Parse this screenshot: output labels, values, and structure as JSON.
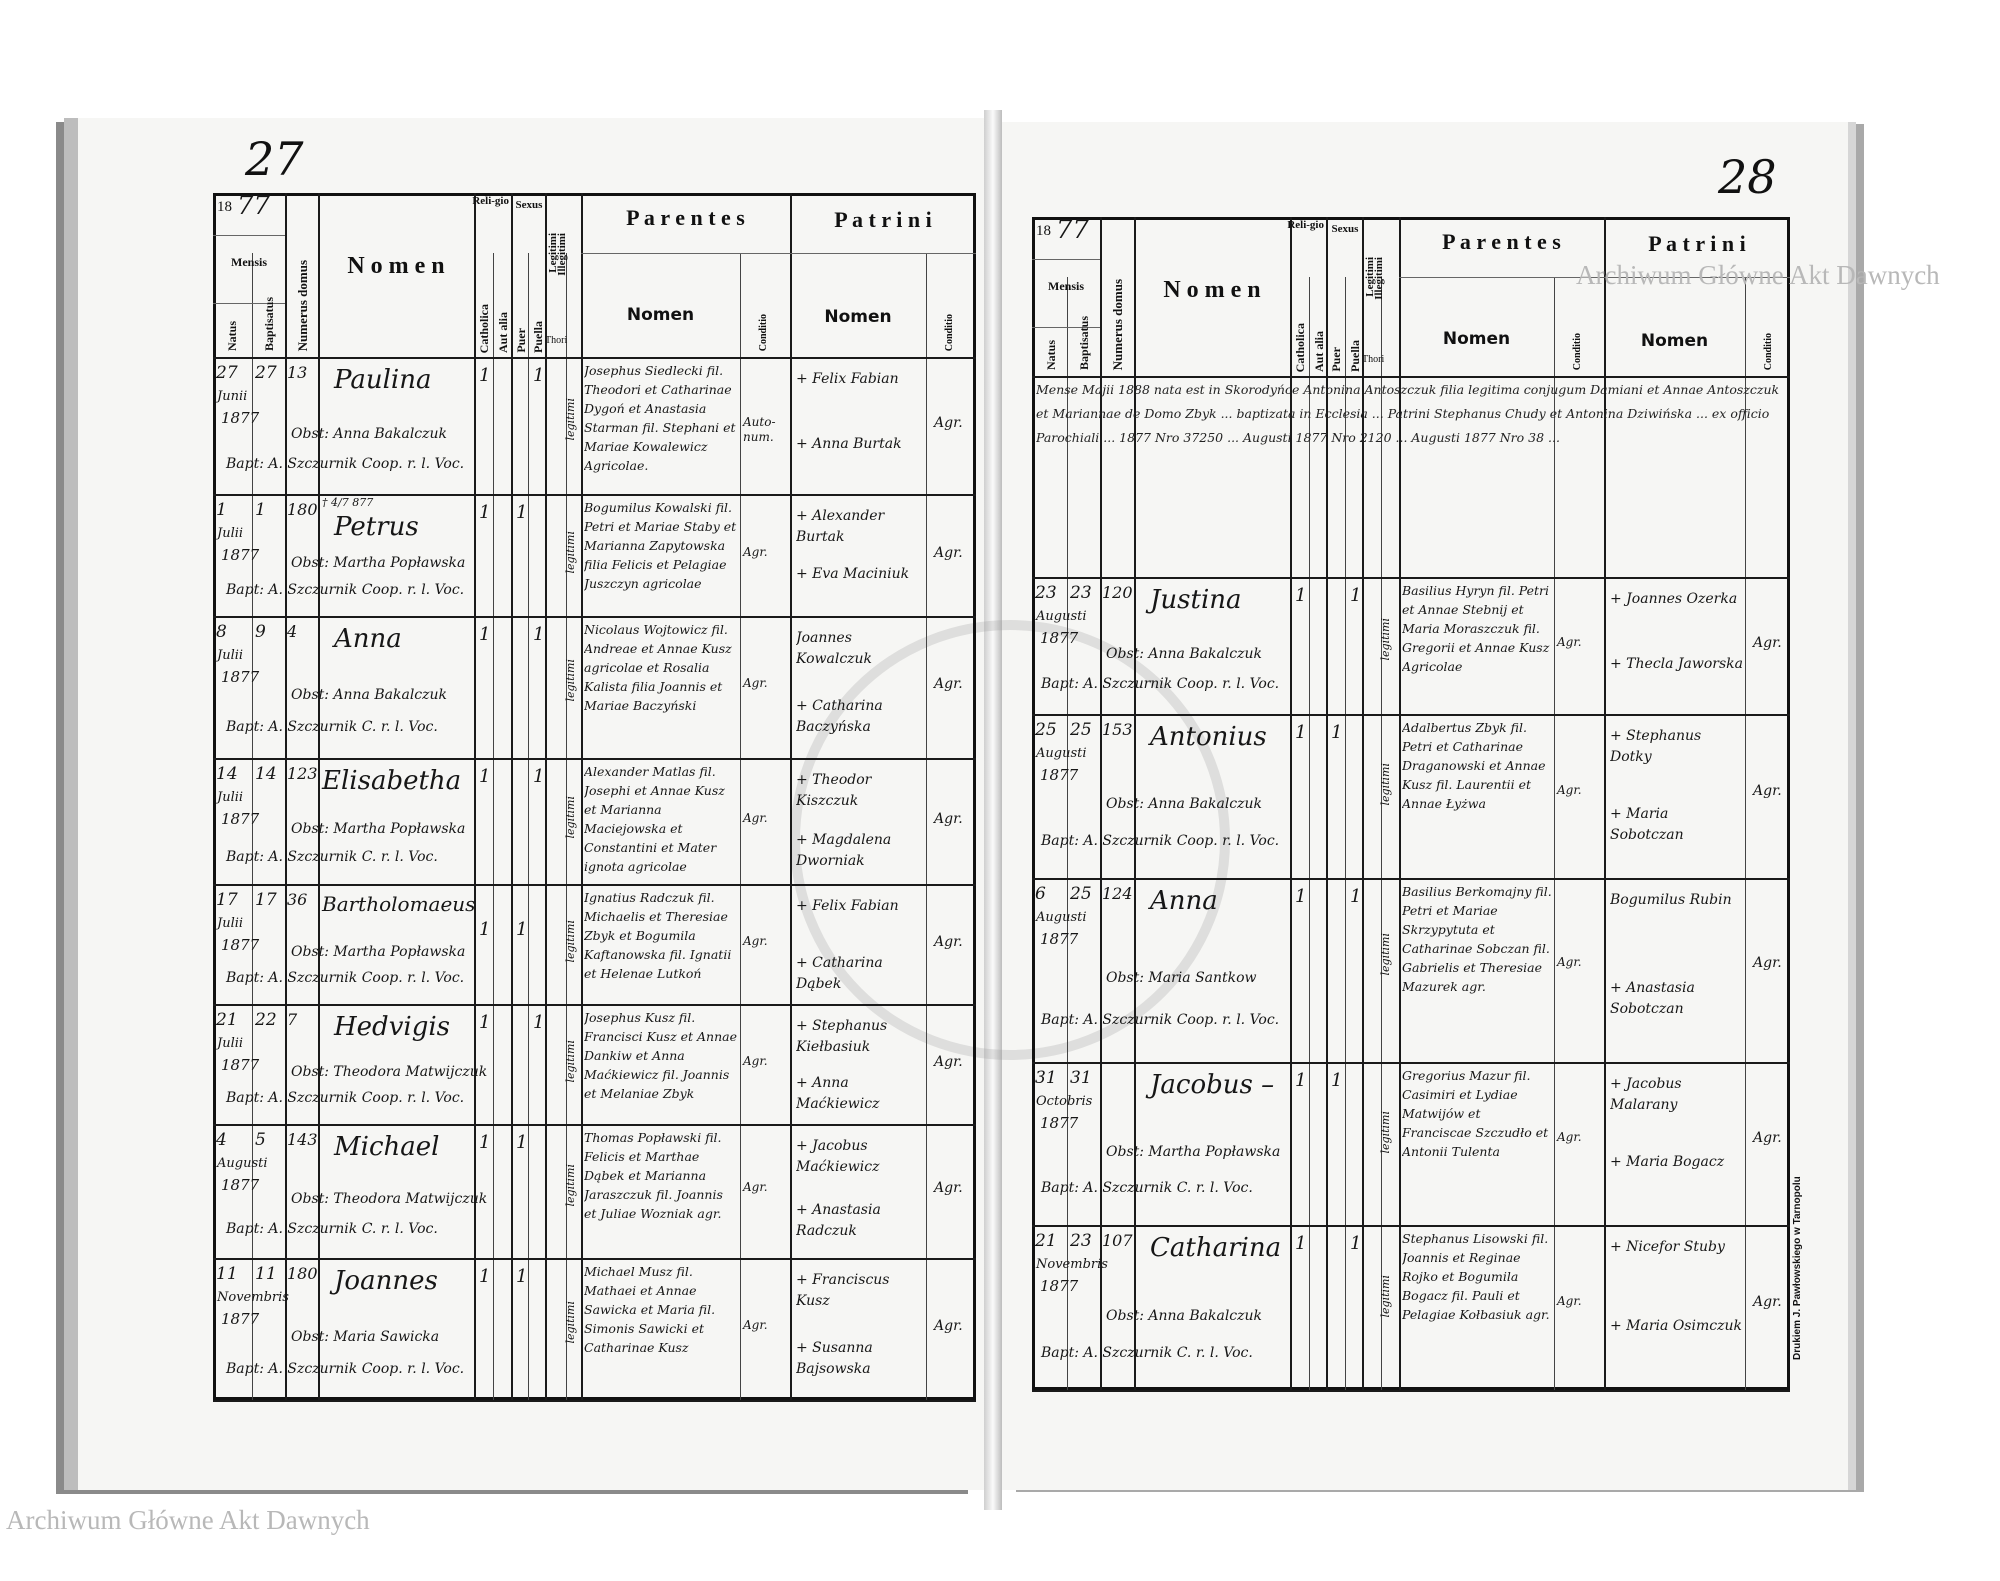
{
  "pages": {
    "left_number": "27",
    "right_number": "28"
  },
  "header": {
    "year_prefix": "18",
    "year_suffix": "77",
    "mensis": "Mensis",
    "natus": "Natus",
    "baptisatus": "Baptisatus",
    "numerus_domus": "Numerus domus",
    "nomen": "N o m e n",
    "religio": "Reli-gio",
    "catholica": "Catholica",
    "aut_alia": "Aut alia",
    "sexus": "Sexus",
    "puer": "Puer",
    "puella": "Puella",
    "legitimi": "Legitimi",
    "illegitimi": "Illegitimi",
    "thori": "Thori",
    "parentes": "P a r e n t e s",
    "patrini": "P a t r i n i",
    "sub_nomen": "Nomen",
    "conditio": "Conditio"
  },
  "left_entries": [
    {
      "natus": "27",
      "baptisatus": "27",
      "mensis": "Junii",
      "year": "1877",
      "numerus": "13",
      "nomen": "Paulina",
      "note": "",
      "obst": "Obst: Anna Bakalczuk",
      "bapt": "Bapt: A. Szczurnik Coop. r. l. Voc.",
      "religio": "1",
      "sexus": "1",
      "sex_col": "puella",
      "thori": "legitimi",
      "parentes": "Josephus Siedlecki fil. Theodori et Catharinae Dygoń et Anastasia Starman fil. Stephani et Mariae Kowalewicz Agricolae.",
      "parentes_conditio": "Auto-num.",
      "patrini": [
        "+ Felix Fabian",
        "+ Anna Burtak"
      ],
      "patrini_conditio": "Agr."
    },
    {
      "natus": "1",
      "baptisatus": "1",
      "mensis": "Julii",
      "year": "1877",
      "numerus": "180",
      "nomen": "Petrus",
      "note": "† 4/7 877",
      "obst": "Obst: Martha Popławska",
      "bapt": "Bapt: A. Szczurnik Coop. r. l. Voc.",
      "religio": "1",
      "sexus": "1",
      "sex_col": "puer",
      "thori": "legitimi",
      "parentes": "Bogumilus Kowalski fil. Petri et Mariae Staby et Marianna Zapytowska filia Felicis et Pelagiae Juszczyn agricolae",
      "parentes_conditio": "Agr.",
      "patrini": [
        "+ Alexander Burtak",
        "+ Eva Maciniuk"
      ],
      "patrini_conditio": "Agr."
    },
    {
      "natus": "8",
      "baptisatus": "9",
      "mensis": "Julii",
      "year": "1877",
      "numerus": "4",
      "nomen": "Anna",
      "note": "",
      "obst": "Obst: Anna Bakalczuk",
      "bapt": "Bapt: A. Szczurnik C. r. l. Voc.",
      "religio": "1",
      "sexus": "1",
      "sex_col": "puella",
      "thori": "legitimi",
      "parentes": "Nicolaus Wojtowicz fil. Andreae et Annae Kusz agricolae et Rosalia Kalista filia Joannis et Mariae Baczyński",
      "parentes_conditio": "Agr.",
      "patrini": [
        "Joannes Kowalczuk",
        "+ Catharina Baczyńska"
      ],
      "patrini_conditio": "Agr."
    },
    {
      "natus": "14",
      "baptisatus": "14",
      "mensis": "Julii",
      "year": "1877",
      "numerus": "123",
      "nomen": "Elisabetha",
      "note": "",
      "obst": "Obst: Martha Popławska",
      "bapt": "Bapt: A. Szczurnik C. r. l. Voc.",
      "religio": "1",
      "sexus": "1",
      "sex_col": "puella",
      "thori": "legitimi",
      "parentes": "Alexander Matlas fil. Josephi et Annae Kusz et Marianna Maciejowska et Constantini et Mater ignota agricolae",
      "parentes_conditio": "Agr.",
      "patrini": [
        "+ Theodor Kiszczuk",
        "+ Magdalena Dworniak"
      ],
      "patrini_conditio": "Agr."
    },
    {
      "natus": "17",
      "baptisatus": "17",
      "mensis": "Julii",
      "year": "1877",
      "numerus": "36",
      "nomen": "Bartholomaeus",
      "note": "",
      "obst": "Obst: Martha Popławska",
      "bapt": "Bapt: A. Szczurnik Coop. r. l. Voc.",
      "religio": "1",
      "sexus": "1",
      "sex_col": "puer",
      "thori": "legitimi",
      "parentes": "Ignatius Radczuk fil. Michaelis et Theresiae Zbyk et Bogumila Kaftanowska fil. Ignatii et Helenae Lutkoń",
      "parentes_conditio": "Agr.",
      "patrini": [
        "+ Felix Fabian",
        "+ Catharina Dąbek"
      ],
      "patrini_conditio": "Agr."
    },
    {
      "natus": "21",
      "baptisatus": "22",
      "mensis": "Julii",
      "year": "1877",
      "numerus": "7",
      "nomen": "Hedvigis",
      "note": "",
      "obst": "Obst: Theodora Matwijczuk",
      "bapt": "Bapt: A. Szczurnik Coop. r. l. Voc.",
      "religio": "1",
      "sexus": "1",
      "sex_col": "puella",
      "thori": "legitimi",
      "parentes": "Josephus Kusz fil. Francisci Kusz et Annae Dankiw et Anna Maćkiewicz fil. Joannis et Melaniae Zbyk",
      "parentes_conditio": "Agr.",
      "patrini": [
        "+ Stephanus Kiełbasiuk",
        "+ Anna Maćkiewicz"
      ],
      "patrini_conditio": "Agr."
    },
    {
      "natus": "4",
      "baptisatus": "5",
      "mensis": "Augusti",
      "year": "1877",
      "numerus": "143",
      "nomen": "Michael",
      "note": "",
      "obst": "Obst: Theodora Matwijczuk",
      "bapt": "Bapt: A. Szczurnik C. r. l. Voc.",
      "religio": "1",
      "sexus": "1",
      "sex_col": "puer",
      "thori": "legitimi",
      "parentes": "Thomas Popławski fil. Felicis et Marthae Dąbek et Marianna Jaraszczuk fil. Joannis et Juliae Wozniak agr.",
      "parentes_conditio": "Agr.",
      "patrini": [
        "+ Jacobus Maćkiewicz",
        "+ Anastasia Radczuk"
      ],
      "patrini_conditio": "Agr."
    },
    {
      "natus": "11",
      "baptisatus": "11",
      "mensis": "Novembris",
      "year": "1877",
      "numerus": "180",
      "nomen": "Joannes",
      "note": "",
      "obst": "Obst: Maria Sawicka",
      "bapt": "Bapt: A. Szczurnik Coop. r. l. Voc.",
      "religio": "1",
      "sexus": "1",
      "sex_col": "puer",
      "thori": "legitimi",
      "parentes": "Michael Musz fil. Mathaei et Annae Sawicka et Maria fil. Simonis Sawicki et Catharinae Kusz",
      "parentes_conditio": "Agr.",
      "patrini": [
        "+ Franciscus Kusz",
        "+ Susanna Bajsowska"
      ],
      "patrini_conditio": "Agr."
    }
  ],
  "right_note": "Mense Majii 1888 nata est in Skorodyńce Antonina Antoszczuk filia legitima conjugum Damiani et Annae Antoszczuk et Mariannae de Domo Zbyk ... baptizata in Ecclesia ... Patrini Stephanus Chudy et Antonina Dziwińska ... ex officio Parochiali ... 1877 Nro 37250 ... Augusti 1877 Nro 2120 ... Augusti 1877 Nro 38 ...",
  "right_entries": [
    {
      "natus": "23",
      "baptisatus": "23",
      "mensis": "Augusti",
      "year": "1877",
      "numerus": "120",
      "nomen": "Justina",
      "note": "",
      "obst": "Obst: Anna Bakalczuk",
      "bapt": "Bapt: A. Szczurnik Coop. r. l. Voc.",
      "religio": "1",
      "sexus": "1",
      "sex_col": "puella",
      "thori": "legitimi",
      "parentes": "Basilius Hyryn fil. Petri et Annae Stebnij et Maria Moraszczuk fil. Gregorii et Annae Kusz Agricolae",
      "parentes_conditio": "Agr.",
      "patrini": [
        "+ Joannes Ozerka",
        "+ Thecla Jaworska"
      ],
      "patrini_conditio": "Agr."
    },
    {
      "natus": "25",
      "baptisatus": "25",
      "mensis": "Augusti",
      "year": "1877",
      "numerus": "153",
      "nomen": "Antonius",
      "note": "",
      "obst": "Obst: Anna Bakalczuk",
      "bapt": "Bapt: A. Szczurnik Coop. r. l. Voc.",
      "religio": "1",
      "sexus": "1",
      "sex_col": "puer",
      "thori": "legitimi",
      "parentes": "Adalbertus Zbyk fil. Petri et Catharinae Draganowski et Annae Kusz fil. Laurentii et Annae Łyżwa",
      "parentes_conditio": "Agr.",
      "patrini": [
        "+ Stephanus Dotky",
        "+ Maria Sobotczan"
      ],
      "patrini_conditio": "Agr."
    },
    {
      "natus": "6",
      "baptisatus": "25",
      "mensis": "Augusti",
      "year": "1877",
      "numerus": "124",
      "nomen": "Anna",
      "note": "",
      "obst": "Obst: Maria Santkow",
      "bapt": "Bapt: A. Szczurnik Coop. r. l. Voc.",
      "religio": "1",
      "sexus": "1",
      "sex_col": "puella",
      "thori": "legitimi",
      "parentes": "Basilius Berkomajny fil. Petri et Mariae Skrzypytuta et Catharinae Sobczan fil. Gabrielis et Theresiae Mazurek agr.",
      "parentes_conditio": "Agr.",
      "patrini": [
        "Bogumilus Rubin",
        "+ Anastasia Sobotczan"
      ],
      "patrini_conditio": "Agr."
    },
    {
      "natus": "31",
      "baptisatus": "31",
      "mensis": "Octobris",
      "year": "1877",
      "numerus": "",
      "nomen": "Jacobus –",
      "note": "",
      "obst": "Obst: Martha Popławska",
      "bapt": "Bapt: A. Szczurnik C. r. l. Voc.",
      "religio": "1",
      "sexus": "1",
      "sex_col": "puer",
      "thori": "legitimi",
      "parentes": "Gregorius Mazur fil. Casimiri et Lydiae Matwijów et Franciscae Szczudło et Antonii Tulenta",
      "parentes_conditio": "Agr.",
      "patrini": [
        "+ Jacobus Malarany",
        "+ Maria Bogacz"
      ],
      "patrini_conditio": "Agr."
    },
    {
      "natus": "21",
      "baptisatus": "23",
      "mensis": "Novembris",
      "year": "1877",
      "numerus": "107",
      "nomen": "Catharina",
      "note": "",
      "obst": "Obst: Anna Bakalczuk",
      "bapt": "Bapt: A. Szczurnik C. r. l. Voc.",
      "religio": "1",
      "sexus": "1",
      "sex_col": "puella",
      "thori": "legitimi",
      "parentes": "Stephanus Lisowski fil. Joannis et Reginae Rojko et Bogumila Bogacz fil. Pauli et Pelagiae Kołbasiuk agr.",
      "parentes_conditio": "Agr.",
      "patrini": [
        "+ Nicefor Stuby",
        "+ Maria Osimczuk"
      ],
      "patrini_conditio": "Agr."
    }
  ],
  "watermark": "Archiwum Główne Akt Dawnych",
  "printer": "Drukiem J. Pawłowskiego w Tarnopolu"
}
